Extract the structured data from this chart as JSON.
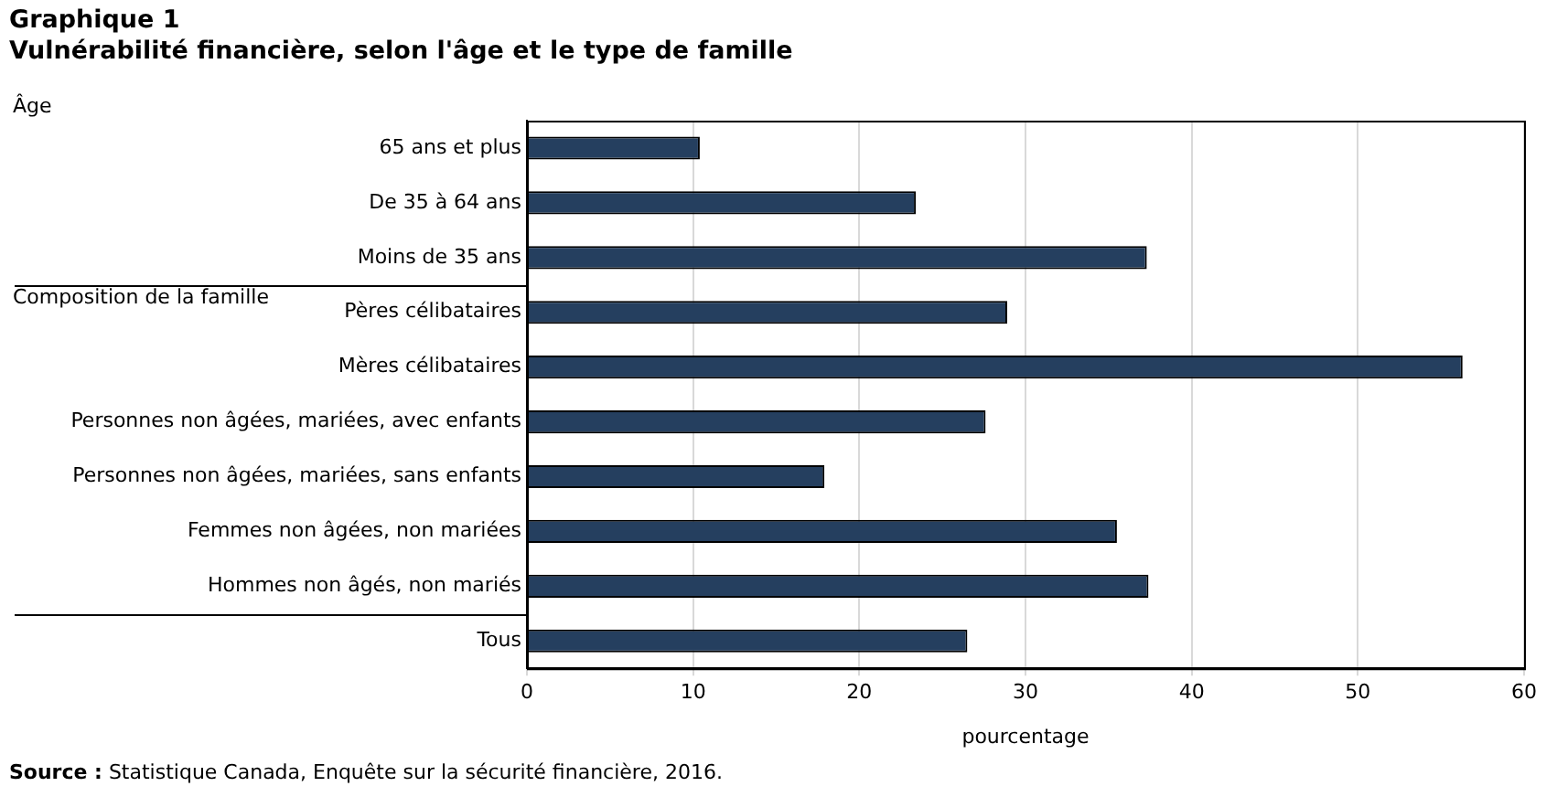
{
  "chart_data": {
    "type": "bar",
    "orientation": "horizontal",
    "title": "Graphique 1",
    "subtitle": "Vulnérabilité financière, selon l'âge et le type de famille",
    "xlabel": "pourcentage",
    "categories": [
      "65 ans et plus",
      "De 35 à 64 ans",
      "Moins de 35 ans",
      "Pères célibataires",
      "Mères célibataires",
      "Personnes non âgées, mariées, avec enfants",
      "Personnes non âgées, mariées, sans enfants",
      "Femmes non âgées, non mariées",
      "Hommes non âgés, non mariés",
      "Tous"
    ],
    "values": [
      10.4,
      23.4,
      37.3,
      28.9,
      56.3,
      27.6,
      17.9,
      35.5,
      37.4,
      26.5
    ],
    "color": "#253f5f",
    "xlim": [
      0,
      60
    ],
    "xticks": [
      0,
      10,
      20,
      30,
      40,
      50,
      60
    ],
    "grid": "x",
    "legend": false,
    "annotations": [
      "Âge",
      "Composition de la famille",
      "Source : Statistique Canada, Enquête sur la sécurité financière, 2016."
    ]
  }
}
